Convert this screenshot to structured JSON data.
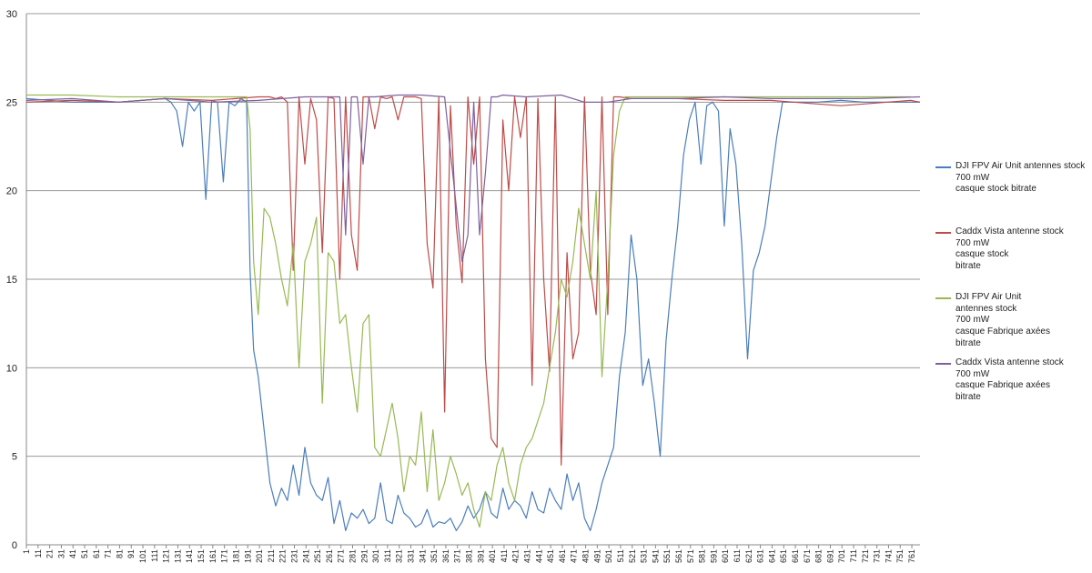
{
  "chart_data": {
    "type": "line",
    "title": "",
    "xlabel": "",
    "ylabel": "",
    "ylim": [
      0,
      30
    ],
    "yticks": [
      0,
      5,
      10,
      15,
      20,
      25,
      30
    ],
    "xlim": [
      1,
      768
    ],
    "xtick_start": 1,
    "xtick_step": 10,
    "xtick_count": 77,
    "grid": "horizontal",
    "legend_position": "right",
    "series": [
      {
        "name": "DJI FPV Air Unit antennes stock\n700 mW\ncasque stock bitrate",
        "color": "#4a7ebb",
        "x": [
          1,
          40,
          80,
          120,
          125,
          130,
          135,
          140,
          145,
          150,
          155,
          160,
          165,
          170,
          175,
          180,
          185,
          190,
          193,
          196,
          200,
          205,
          210,
          215,
          220,
          225,
          230,
          235,
          240,
          245,
          250,
          255,
          260,
          265,
          270,
          275,
          280,
          285,
          290,
          295,
          300,
          305,
          310,
          315,
          320,
          325,
          330,
          335,
          340,
          345,
          350,
          355,
          360,
          365,
          370,
          375,
          380,
          385,
          390,
          395,
          400,
          405,
          410,
          415,
          420,
          425,
          430,
          435,
          440,
          445,
          450,
          455,
          460,
          465,
          470,
          475,
          480,
          485,
          490,
          495,
          500,
          505,
          510,
          515,
          520,
          525,
          530,
          535,
          540,
          545,
          550,
          555,
          560,
          565,
          570,
          575,
          580,
          585,
          590,
          595,
          600,
          605,
          610,
          615,
          620,
          625,
          630,
          635,
          640,
          645,
          650,
          660,
          680,
          700,
          720,
          740,
          768
        ],
        "values": [
          25.2,
          25.0,
          25.0,
          25.2,
          25.0,
          24.5,
          22.5,
          25.0,
          24.5,
          25.0,
          19.5,
          25.1,
          25.0,
          20.5,
          25.0,
          24.8,
          25.2,
          25.0,
          15.5,
          11.0,
          9.5,
          6.5,
          3.5,
          2.2,
          3.2,
          2.5,
          4.5,
          2.8,
          5.5,
          3.5,
          2.8,
          2.5,
          3.8,
          1.2,
          2.5,
          0.8,
          1.8,
          1.5,
          2.0,
          1.2,
          1.5,
          3.5,
          1.4,
          1.2,
          2.8,
          1.8,
          1.5,
          1.0,
          1.2,
          2.0,
          1.0,
          1.3,
          1.2,
          1.5,
          0.8,
          1.3,
          2.2,
          1.5,
          2.0,
          3.0,
          1.8,
          1.5,
          3.2,
          2.0,
          2.5,
          2.2,
          1.5,
          3.0,
          2.0,
          1.8,
          3.2,
          2.5,
          2.0,
          4.0,
          2.5,
          3.5,
          1.5,
          0.8,
          2.0,
          3.5,
          4.5,
          5.5,
          9.5,
          12.0,
          17.5,
          15.0,
          9.0,
          10.5,
          8.0,
          5.0,
          11.5,
          15.0,
          18.0,
          22.0,
          24.0,
          25.0,
          21.5,
          24.8,
          25.0,
          24.5,
          18.0,
          23.5,
          21.5,
          17.0,
          10.5,
          15.5,
          16.5,
          18.0,
          20.5,
          23.0,
          25.0,
          25.0,
          25.0,
          25.1,
          25.0,
          25.0,
          25.0
        ]
      },
      {
        "name": "Caddx Vista antenne stock\n700 mW\n casque stock\nbitrate",
        "color": "#be4b48",
        "x": [
          1,
          40,
          80,
          120,
          160,
          200,
          210,
          215,
          220,
          225,
          230,
          235,
          240,
          245,
          250,
          255,
          260,
          265,
          270,
          275,
          280,
          285,
          290,
          295,
          300,
          305,
          310,
          315,
          320,
          325,
          330,
          335,
          340,
          345,
          350,
          355,
          360,
          365,
          370,
          375,
          380,
          385,
          390,
          395,
          400,
          405,
          410,
          415,
          420,
          425,
          430,
          435,
          440,
          445,
          450,
          455,
          460,
          465,
          470,
          475,
          480,
          485,
          490,
          495,
          500,
          505,
          510,
          520,
          560,
          600,
          640,
          680,
          700,
          720,
          740,
          760,
          768
        ],
        "values": [
          25.0,
          25.1,
          25.0,
          25.2,
          25.1,
          25.3,
          25.3,
          25.2,
          25.3,
          25.0,
          15.5,
          25.3,
          21.5,
          25.2,
          24.0,
          16.5,
          25.3,
          25.2,
          15.0,
          25.3,
          17.5,
          15.5,
          25.3,
          25.3,
          23.5,
          25.3,
          25.2,
          25.3,
          24.0,
          25.3,
          25.3,
          25.3,
          25.2,
          17.0,
          14.5,
          25.3,
          7.5,
          24.8,
          18.0,
          14.8,
          25.3,
          21.5,
          25.3,
          10.5,
          6.0,
          5.5,
          24.0,
          20.0,
          25.3,
          23.0,
          25.3,
          9.0,
          25.2,
          15.0,
          9.8,
          25.3,
          4.5,
          16.5,
          10.5,
          12.0,
          25.3,
          15.5,
          13.0,
          25.3,
          13.0,
          25.3,
          25.3,
          25.2,
          25.2,
          25.1,
          25.1,
          24.9,
          24.8,
          24.9,
          25.0,
          25.1,
          25.0
        ]
      },
      {
        "name": "DJI FPV Air Unit\nantennes stock\n700 mW\n casque Fabrique axées\nbitrate",
        "color": "#98b954",
        "x": [
          1,
          40,
          80,
          120,
          160,
          190,
          193,
          196,
          200,
          205,
          210,
          215,
          220,
          225,
          230,
          235,
          240,
          245,
          250,
          255,
          260,
          265,
          270,
          275,
          280,
          285,
          290,
          295,
          300,
          305,
          310,
          315,
          320,
          325,
          330,
          335,
          340,
          345,
          350,
          355,
          360,
          365,
          370,
          375,
          380,
          385,
          390,
          395,
          400,
          405,
          410,
          415,
          420,
          425,
          430,
          435,
          440,
          445,
          450,
          455,
          460,
          465,
          470,
          475,
          480,
          485,
          490,
          495,
          500,
          505,
          510,
          515,
          520,
          560,
          600,
          640,
          680,
          720,
          760
        ],
        "values": [
          25.4,
          25.4,
          25.3,
          25.3,
          25.3,
          25.3,
          23.5,
          16.0,
          13.0,
          19.0,
          18.5,
          17.0,
          15.0,
          13.5,
          17.0,
          10.0,
          16.0,
          17.0,
          18.5,
          8.0,
          16.5,
          16.0,
          12.5,
          13.0,
          10.0,
          7.5,
          12.5,
          13.0,
          5.5,
          5.0,
          6.5,
          8.0,
          6.0,
          3.0,
          5.0,
          4.5,
          7.5,
          3.0,
          6.5,
          2.5,
          3.5,
          5.0,
          4.0,
          2.8,
          3.5,
          2.0,
          1.0,
          3.0,
          2.5,
          4.5,
          5.5,
          3.5,
          2.5,
          4.5,
          5.5,
          6.0,
          7.0,
          8.0,
          10.0,
          12.0,
          15.0,
          14.0,
          16.0,
          19.0,
          17.0,
          15.0,
          20.0,
          9.5,
          15.0,
          22.0,
          24.5,
          25.3,
          25.3,
          25.3,
          25.3,
          25.3,
          25.3,
          25.3,
          25.3
        ]
      },
      {
        "name": "Caddx Vista antenne stock\n700 mW\n casque Fabrique axées\nbitrate",
        "color": "#7d60a0",
        "x": [
          1,
          40,
          80,
          120,
          160,
          200,
          240,
          270,
          275,
          280,
          285,
          290,
          295,
          300,
          320,
          340,
          360,
          375,
          380,
          385,
          390,
          395,
          400,
          405,
          410,
          430,
          460,
          480,
          500,
          520,
          560,
          600,
          640,
          680,
          720,
          768
        ],
        "values": [
          25.1,
          25.2,
          25.0,
          25.2,
          25.0,
          25.1,
          25.3,
          25.3,
          17.5,
          25.3,
          25.3,
          21.5,
          25.3,
          25.3,
          25.4,
          25.4,
          25.3,
          16.0,
          17.5,
          25.0,
          17.5,
          21.0,
          25.3,
          25.3,
          25.4,
          25.3,
          25.4,
          25.0,
          25.0,
          25.2,
          25.2,
          25.3,
          25.2,
          25.2,
          25.2,
          25.3
        ]
      }
    ]
  }
}
